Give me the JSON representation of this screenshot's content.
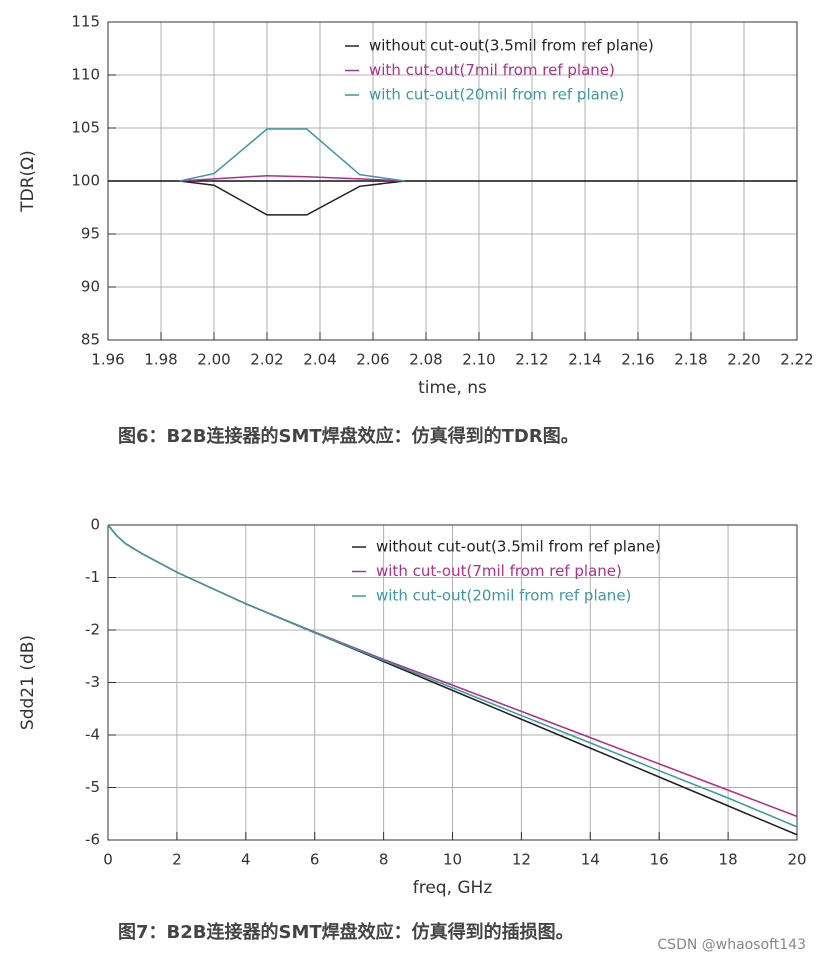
{
  "chart_data": [
    {
      "type": "line",
      "caption": "图6：B2B连接器的SMT焊盘效应：仿真得到的TDR图。",
      "xlabel": "time, ns",
      "ylabel": "TDR(Ω)",
      "xlim": [
        1.96,
        2.22
      ],
      "xticks": [
        1.96,
        1.98,
        {
          "value": 2,
          "label": "2.00"
        },
        2.02,
        2.04,
        2.06,
        2.08,
        {
          "value": 2.1,
          "label": "2.10"
        },
        2.12,
        2.14,
        2.16,
        2.18,
        {
          "value": 2.2,
          "label": "2.20"
        },
        2.22
      ],
      "ylim": [
        85,
        115
      ],
      "yticks": [
        85,
        90,
        95,
        100,
        105,
        110,
        115
      ],
      "grid": true,
      "hline": 100,
      "legend": "top-right",
      "series": [
        {
          "name": "without cut-out(3.5mil from ref plane)",
          "color": "#222222",
          "x": [
            1.987,
            2.0,
            2.02,
            2.035,
            2.055,
            2.072
          ],
          "values": [
            100,
            99.6,
            96.8,
            96.8,
            99.5,
            100
          ]
        },
        {
          "name": "with cut-out(7mil from ref plane)",
          "color": "#b0308a",
          "x": [
            1.987,
            2.0,
            2.02,
            2.035,
            2.055,
            2.072
          ],
          "values": [
            100,
            100.2,
            100.5,
            100.4,
            100.2,
            100
          ]
        },
        {
          "name": "with cut-out(20mil from ref plane)",
          "color": "#3a9aa0",
          "x": [
            1.987,
            2.0,
            2.02,
            2.035,
            2.055,
            2.072
          ],
          "values": [
            100,
            100.7,
            104.9,
            104.9,
            100.6,
            100
          ]
        }
      ]
    },
    {
      "type": "line",
      "caption": "图7：B2B连接器的SMT焊盘效应：仿真得到的插损图。",
      "xlabel": "freq, GHz",
      "ylabel": "Sdd21 (dB)",
      "xlim": [
        0,
        20
      ],
      "xticks": [
        0,
        2,
        4,
        6,
        8,
        10,
        12,
        14,
        16,
        18,
        20
      ],
      "ylim": [
        -6,
        0
      ],
      "yticks": [
        -6,
        -5,
        -4,
        -3,
        -2,
        -1,
        0
      ],
      "grid": true,
      "legend": "top-right",
      "x": [
        0,
        0.25,
        0.5,
        1,
        2,
        4,
        6,
        8,
        10,
        12,
        14,
        16,
        18,
        20
      ],
      "series": [
        {
          "name": "without cut-out(3.5mil from ref plane)",
          "color": "#222222",
          "values": [
            0,
            -0.2,
            -0.35,
            -0.55,
            -0.9,
            -1.5,
            -2.05,
            -2.6,
            -3.15,
            -3.7,
            -4.25,
            -4.8,
            -5.35,
            -5.9
          ]
        },
        {
          "name": "with cut-out(7mil from ref plane)",
          "color": "#b0308a",
          "values": [
            0,
            -0.2,
            -0.35,
            -0.55,
            -0.9,
            -1.5,
            -2.04,
            -2.56,
            -3.05,
            -3.55,
            -4.05,
            -4.55,
            -5.05,
            -5.55
          ]
        },
        {
          "name": "with cut-out(20mil from ref plane)",
          "color": "#3a9aa0",
          "values": [
            0,
            -0.2,
            -0.35,
            -0.55,
            -0.9,
            -1.5,
            -2.05,
            -2.58,
            -3.1,
            -3.63,
            -4.15,
            -4.68,
            -5.2,
            -5.75
          ]
        }
      ]
    }
  ],
  "watermark": "CSDN @whaosoft143"
}
